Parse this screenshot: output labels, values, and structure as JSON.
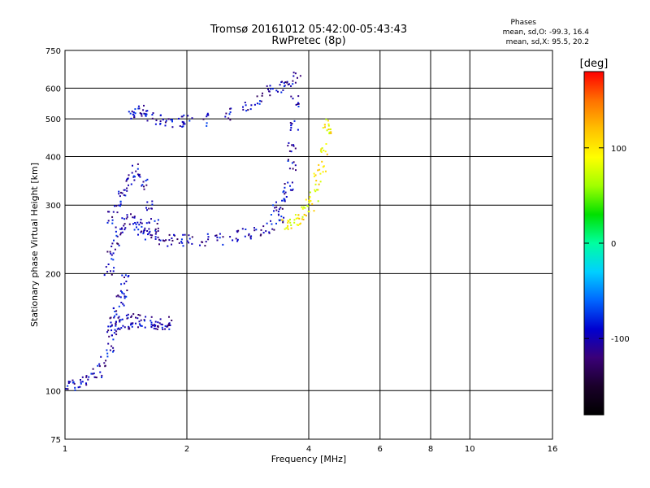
{
  "chart_data": {
    "type": "scatter",
    "title": "Tromsø 20161012 05:42:00-05:43:43",
    "subtitle": "RwPretec (8p)",
    "xlabel": "Frequency [MHz]",
    "ylabel": "Stationary phase Virtual Height [km]",
    "x_scale": "log",
    "y_scale": "log",
    "xlim": [
      1,
      16
    ],
    "ylim": [
      75,
      750
    ],
    "x_ticks": [
      1,
      2,
      4,
      6,
      8,
      10,
      16
    ],
    "x_tick_labels": [
      "1",
      "2",
      "4",
      "6",
      "8",
      "10",
      "16"
    ],
    "y_ticks": [
      75,
      100,
      200,
      300,
      400,
      500,
      600,
      750
    ],
    "y_tick_labels": [
      "75",
      "100",
      "200",
      "300",
      "400",
      "500",
      "600",
      "750"
    ],
    "grid": true,
    "stats": {
      "heading": "Phases",
      "line_o": "mean, sd,O: -99.3, 16.4",
      "line_x": "mean, sd,X:  95.5, 20.2"
    },
    "colorbar": {
      "label": "[deg]",
      "range": [
        -180,
        180
      ],
      "ticks": [
        100,
        0,
        -100
      ],
      "tick_labels": [
        "100",
        "0",
        "-100"
      ],
      "colormap": [
        "#000000",
        "#1a002a",
        "#3a0078",
        "#0000d0",
        "#0066ff",
        "#00d0ff",
        "#00ffa0",
        "#00e000",
        "#a0ff00",
        "#ffff00",
        "#ffc000",
        "#ff7000",
        "#ff0000"
      ]
    },
    "series": [
      {
        "mode": "O",
        "phase_deg": -100,
        "traces": [
          {
            "x": [
              1.0,
              1.05,
              1.1,
              1.15,
              1.2,
              1.24,
              1.28,
              1.3,
              1.32,
              1.34,
              1.36,
              1.38,
              1.4
            ],
            "y": [
              103,
              104,
              106,
              108,
              112,
              120,
              130,
              140,
              150,
              160,
              170,
              180,
              195
            ]
          },
          {
            "x": [
              1.3,
              1.35,
              1.4,
              1.45,
              1.5,
              1.55,
              1.6,
              1.65,
              1.7,
              1.75,
              1.78
            ],
            "y": [
              145,
              148,
              150,
              152,
              153,
              152,
              150,
              148,
              146,
              150,
              150
            ]
          },
          {
            "x": [
              1.28,
              1.3,
              1.33,
              1.36,
              1.4,
              1.45,
              1.5,
              1.55,
              1.6,
              1.65,
              1.7,
              1.8,
              1.9,
              2.0,
              2.2,
              2.4,
              2.6,
              2.8,
              3.0,
              3.2,
              3.4
            ],
            "y": [
              205,
              225,
              245,
              260,
              270,
              275,
              270,
              262,
              255,
              250,
              248,
              245,
              244,
              244,
              245,
              247,
              250,
              254,
              258,
              265,
              280
            ]
          },
          {
            "x": [
              1.3,
              1.34,
              1.38,
              1.42,
              1.45,
              1.5,
              1.55,
              1.6,
              1.65
            ],
            "y": [
              280,
              300,
              320,
              340,
              360,
              370,
              340,
              300,
              270
            ]
          },
          {
            "x": [
              3.3,
              3.4,
              3.5,
              3.55,
              3.6,
              3.63,
              3.66,
              3.68,
              3.7
            ],
            "y": [
              290,
              300,
              320,
              340,
              380,
              420,
              480,
              560,
              640
            ]
          },
          {
            "x": [
              1.45,
              1.5,
              1.55,
              1.6,
              1.7,
              1.8,
              1.9,
              2.0,
              2.2,
              2.5,
              2.8,
              3.0,
              3.2,
              3.4,
              3.5
            ],
            "y": [
              505,
              525,
              530,
              515,
              500,
              495,
              495,
              495,
              500,
              515,
              540,
              565,
              590,
              610,
              630
            ]
          }
        ]
      },
      {
        "mode": "X",
        "phase_deg": 95,
        "traces": [
          {
            "x": [
              3.5,
              3.6,
              3.7,
              3.8,
              3.9,
              4.0,
              4.1,
              4.2,
              4.3,
              4.35,
              4.4,
              4.45
            ],
            "y": [
              270,
              272,
              275,
              280,
              290,
              300,
              320,
              350,
              380,
              420,
              460,
              490
            ]
          }
        ]
      }
    ]
  }
}
